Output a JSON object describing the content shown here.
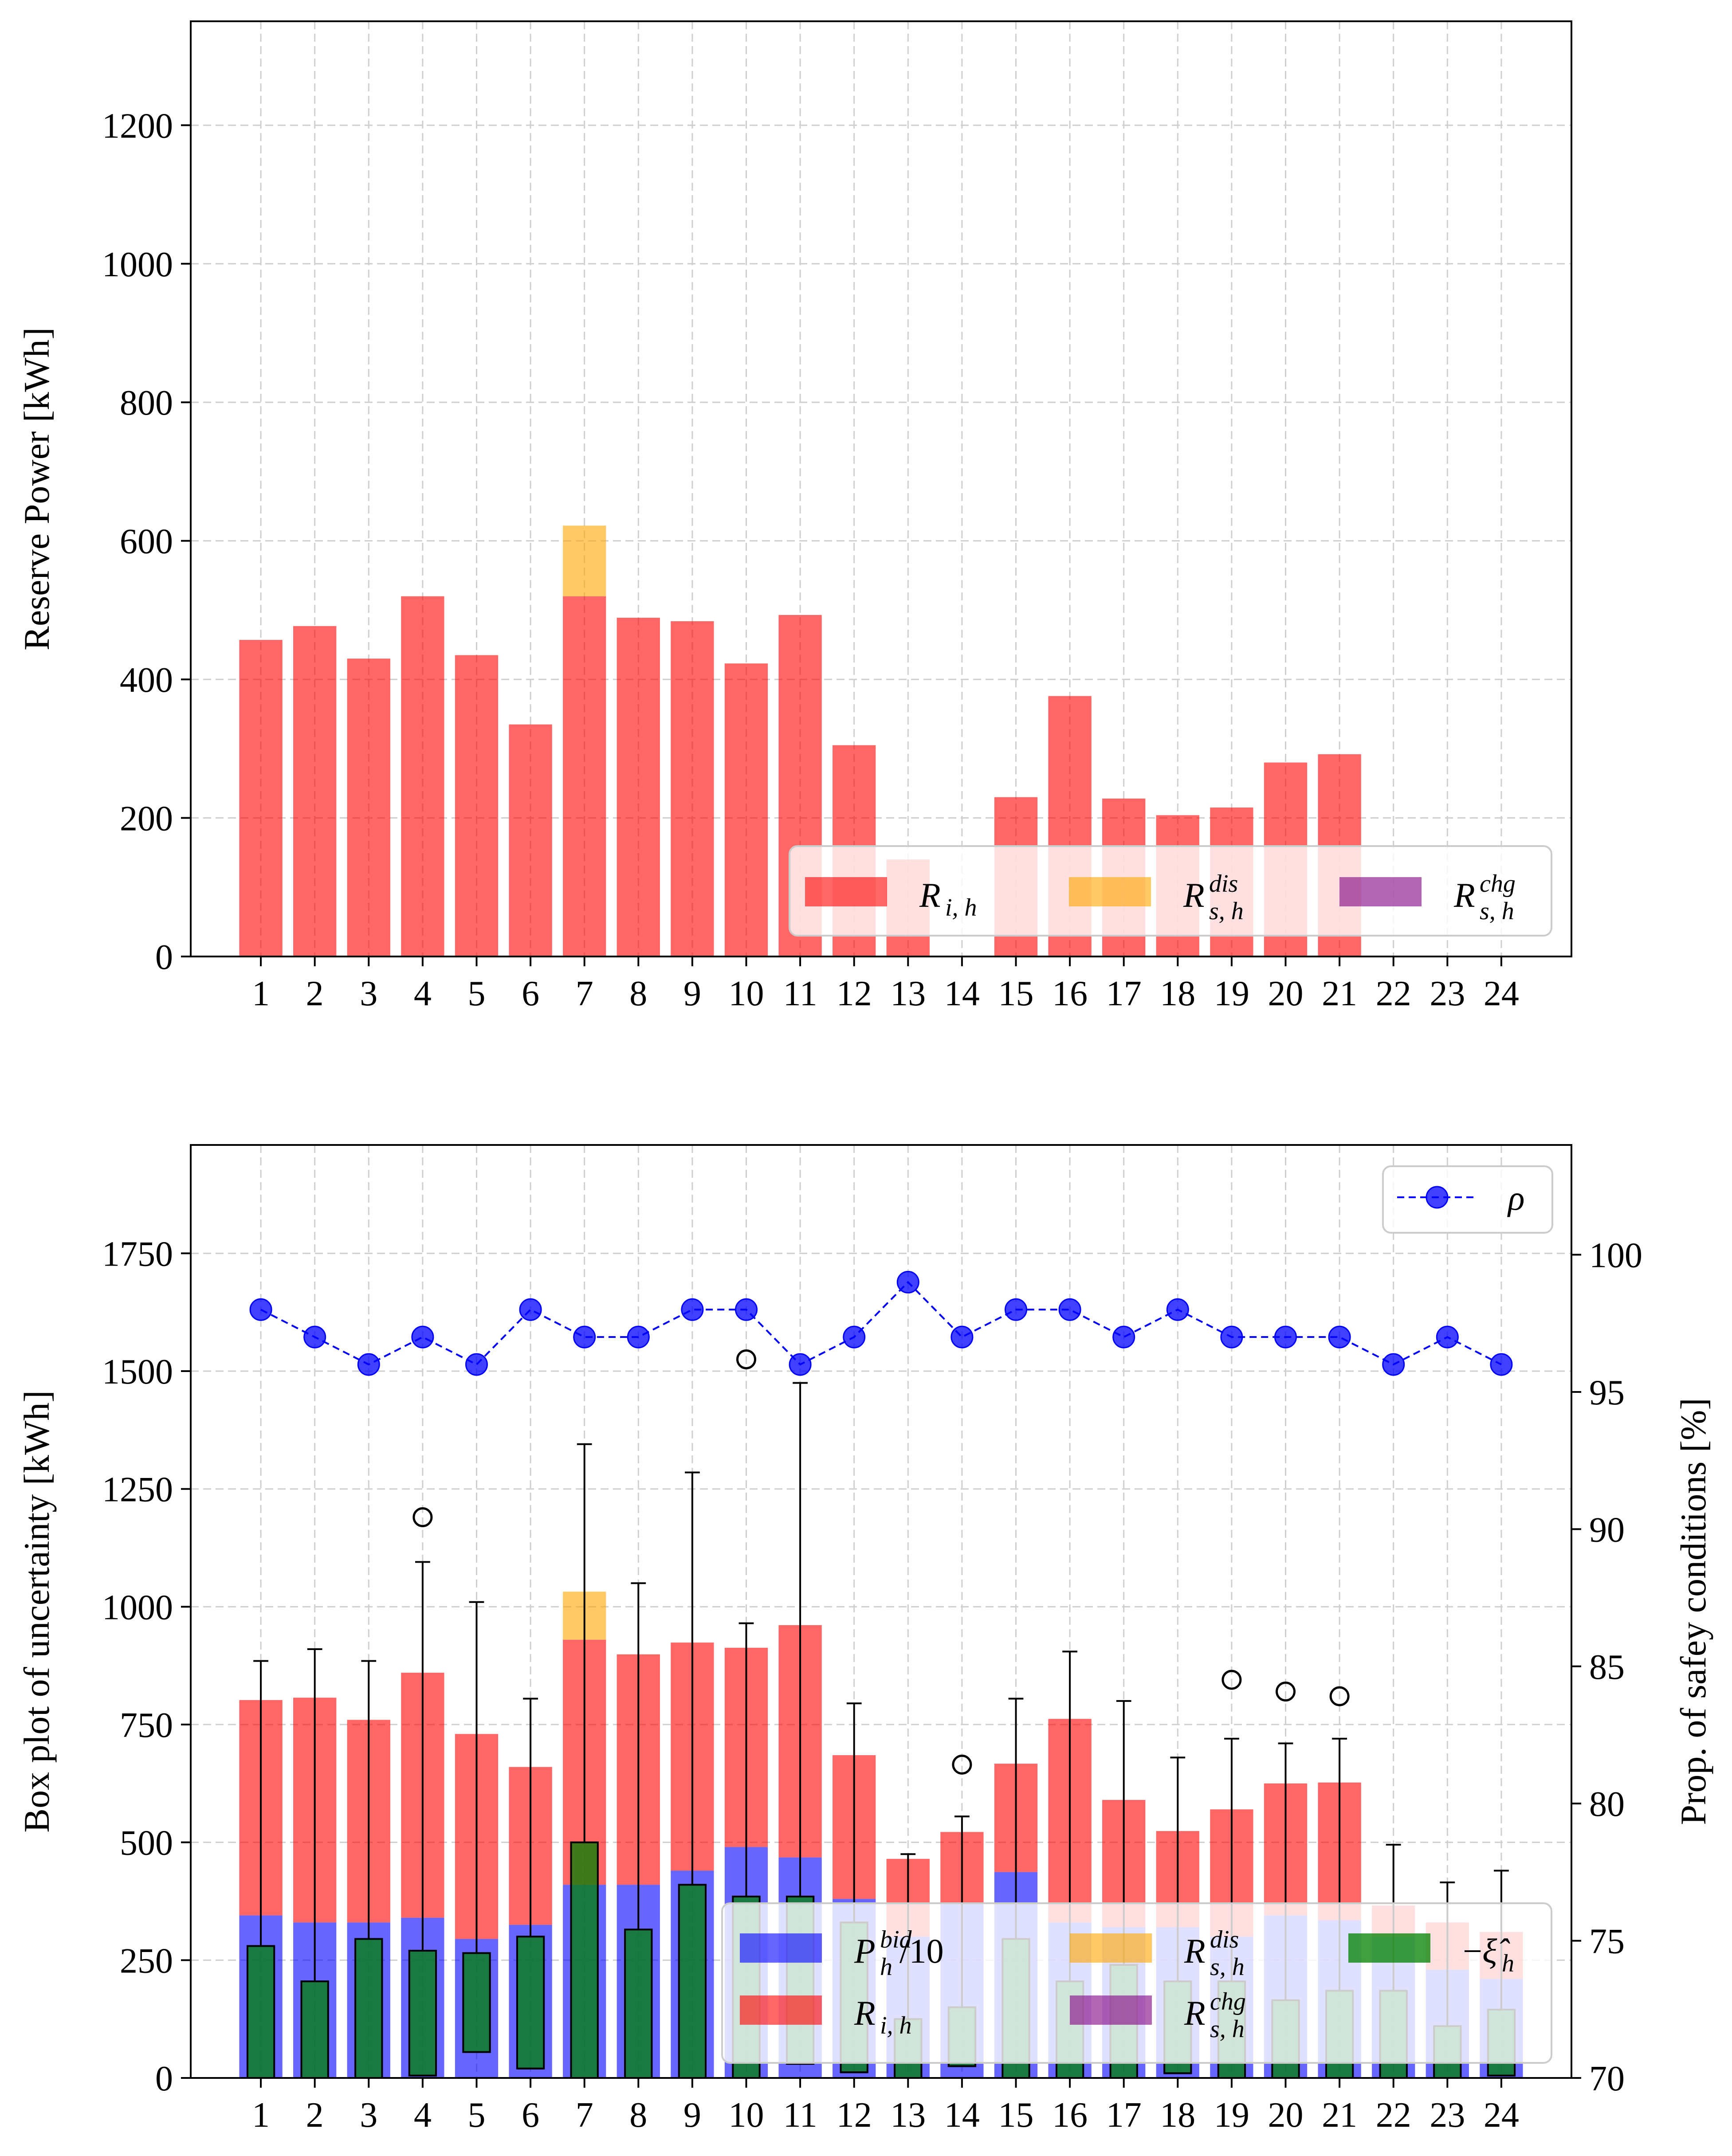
{
  "chart_data": [
    {
      "type": "bar",
      "stacked": true,
      "categories": [
        "1",
        "2",
        "3",
        "4",
        "5",
        "6",
        "7",
        "8",
        "9",
        "10",
        "11",
        "12",
        "13",
        "14",
        "15",
        "16",
        "17",
        "18",
        "19",
        "20",
        "21",
        "22",
        "23",
        "24"
      ],
      "ylabel": "Reserve Power [kWh]",
      "ylim": [
        0,
        1350
      ],
      "yticks": [
        0,
        200,
        400,
        600,
        800,
        1000,
        1200
      ],
      "grid": true,
      "legend_position": "lower-right",
      "colors": {
        "R_i": "#ff0000",
        "R_dis": "#ffa500",
        "R_chg": "#800080"
      },
      "series": [
        {
          "name": "R_{i,h}",
          "values": [
            457,
            477,
            430,
            520,
            435,
            335,
            520,
            489,
            484,
            423,
            493,
            305,
            140,
            0,
            230,
            376,
            228,
            204,
            215,
            280,
            292,
            0,
            0,
            0
          ]
        },
        {
          "name": "R^{dis}_{s,h}",
          "values": [
            0,
            0,
            0,
            0,
            0,
            0,
            102,
            0,
            0,
            0,
            0,
            0,
            0,
            0,
            0,
            0,
            0,
            0,
            0,
            0,
            0,
            0,
            0,
            0
          ]
        },
        {
          "name": "R^{chg}_{s,h}",
          "values": [
            0,
            0,
            0,
            0,
            0,
            0,
            0,
            0,
            0,
            0,
            0,
            0,
            0,
            0,
            0,
            0,
            0,
            0,
            0,
            0,
            0,
            0,
            0,
            0
          ]
        }
      ],
      "legend": [
        "R_{i,h}",
        "R^{dis}_{s,h}",
        "R^{chg}_{s,h}"
      ]
    },
    {
      "type": "bar",
      "stacked": true,
      "categories": [
        "1",
        "2",
        "3",
        "4",
        "5",
        "6",
        "7",
        "8",
        "9",
        "10",
        "11",
        "12",
        "13",
        "14",
        "15",
        "16",
        "17",
        "18",
        "19",
        "20",
        "21",
        "22",
        "23",
        "24"
      ],
      "ylabel": "Box plot of uncertainty [kWh]",
      "ylabel_right": "Prop. of safey conditions [%]",
      "ylim": [
        0,
        1980
      ],
      "yticks": [
        0,
        250,
        500,
        750,
        1000,
        1250,
        1500,
        1750
      ],
      "ylim_right": [
        70,
        104
      ],
      "yticks_right": [
        70,
        75,
        80,
        85,
        90,
        95,
        100
      ],
      "grid": true,
      "legend_position": "lower-right",
      "legend_rho_position": "top-right",
      "colors": {
        "P_bid": "#0000ff",
        "R_i": "#ff0000",
        "R_dis": "#ffa500",
        "R_chg": "#800080",
        "xi": "#008000",
        "rho": "#0000ff"
      },
      "series": [
        {
          "name": "P^{bid}_h/10",
          "values": [
            345,
            330,
            330,
            340,
            295,
            325,
            410,
            410,
            440,
            490,
            468,
            380,
            300,
            370,
            437,
            330,
            320,
            320,
            300,
            345,
            335,
            300,
            230,
            210
          ]
        },
        {
          "name": "R_{i,h}",
          "values": [
            457,
            477,
            430,
            520,
            435,
            335,
            520,
            489,
            484,
            423,
            493,
            305,
            165,
            152,
            230,
            432,
            270,
            204,
            270,
            280,
            292,
            66,
            100,
            100
          ]
        },
        {
          "name": "R^{dis}_{s,h}",
          "values": [
            0,
            0,
            0,
            0,
            0,
            0,
            102,
            0,
            0,
            0,
            0,
            0,
            0,
            0,
            0,
            0,
            0,
            0,
            0,
            0,
            0,
            0,
            0,
            0
          ]
        },
        {
          "name": "R^{chg}_{s,h}",
          "values": [
            0,
            0,
            0,
            0,
            0,
            0,
            0,
            0,
            0,
            0,
            0,
            0,
            0,
            0,
            0,
            0,
            0,
            0,
            0,
            0,
            0,
            0,
            0,
            0
          ]
        }
      ],
      "boxplot": {
        "name": "-ξ̂_h",
        "whisker_low": [
          0,
          0,
          0,
          0,
          0,
          0,
          0,
          0,
          0,
          0,
          0,
          0,
          0,
          0,
          0,
          0,
          0,
          0,
          0,
          0,
          0,
          0,
          0,
          0
        ],
        "q1": [
          0,
          0,
          0,
          5,
          55,
          20,
          0,
          0,
          0,
          0,
          30,
          12,
          0,
          25,
          0,
          0,
          0,
          10,
          0,
          0,
          0,
          0,
          0,
          5
        ],
        "median": [
          0,
          0,
          0,
          5,
          55,
          20,
          0,
          0,
          0,
          0,
          30,
          12,
          0,
          25,
          0,
          0,
          0,
          10,
          0,
          0,
          0,
          0,
          0,
          5
        ],
        "q3": [
          280,
          205,
          295,
          270,
          265,
          300,
          500,
          315,
          410,
          385,
          385,
          330,
          125,
          150,
          295,
          205,
          240,
          205,
          205,
          165,
          185,
          185,
          110,
          145
        ],
        "whisker_high": [
          885,
          910,
          885,
          1095,
          1010,
          805,
          1345,
          1050,
          1285,
          965,
          1475,
          795,
          475,
          555,
          805,
          905,
          800,
          680,
          720,
          710,
          720,
          495,
          415,
          440
        ],
        "outliers": [
          [],
          [],
          [],
          [
            1190
          ],
          [],
          [],
          [],
          [],
          [],
          [
            1525
          ],
          [],
          [],
          [],
          [
            665
          ],
          [],
          [],
          [],
          [],
          [
            845
          ],
          [
            820
          ],
          [
            810
          ],
          [],
          [],
          []
        ]
      },
      "rho": {
        "name": "ρ",
        "values": [
          98,
          97,
          96,
          97,
          96,
          98,
          97,
          97,
          98,
          98,
          96,
          97,
          99,
          97,
          98,
          98,
          97,
          98,
          97,
          97,
          97,
          96,
          97,
          96
        ]
      },
      "legend": [
        "P^{bid}_h/10",
        "R_{i,h}",
        "R^{dis}_{s,h}",
        "R^{chg}_{s,h}",
        "-ξ̂_h",
        "ρ"
      ]
    }
  ]
}
